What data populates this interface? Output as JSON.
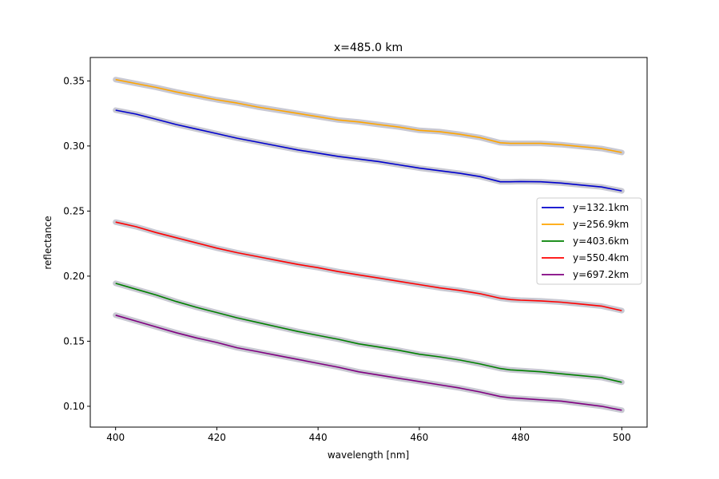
{
  "chart_data": {
    "type": "line",
    "title": "x=485.0 km",
    "xlabel": "wavelength [nm]",
    "ylabel": "reflectance",
    "xlim": [
      395,
      505
    ],
    "ylim": [
      0.084,
      0.368
    ],
    "xticks": [
      400,
      420,
      440,
      460,
      480,
      500
    ],
    "xtick_labels": [
      "400",
      "420",
      "440",
      "460",
      "480",
      "500"
    ],
    "yticks": [
      0.1,
      0.15,
      0.2,
      0.25,
      0.3,
      0.35
    ],
    "ytick_labels": [
      "0.10",
      "0.15",
      "0.20",
      "0.25",
      "0.30",
      "0.35"
    ],
    "grid": false,
    "legend_position": "center-right",
    "uncertainty_band_color": "#c8c8d2",
    "x": [
      400,
      404,
      408,
      412,
      416,
      420,
      424,
      428,
      432,
      436,
      440,
      444,
      448,
      452,
      456,
      460,
      464,
      468,
      472,
      476,
      478,
      480,
      484,
      488,
      492,
      496,
      500
    ],
    "series": [
      {
        "name": "y=132.1km",
        "color": "#0000cc",
        "values": [
          0.3275,
          0.3245,
          0.3205,
          0.3165,
          0.313,
          0.3095,
          0.306,
          0.303,
          0.3,
          0.297,
          0.2945,
          0.292,
          0.29,
          0.288,
          0.2855,
          0.283,
          0.281,
          0.279,
          0.2765,
          0.2725,
          0.2725,
          0.2727,
          0.2725,
          0.2715,
          0.27,
          0.2685,
          0.2655
        ]
      },
      {
        "name": "y=256.9km",
        "color": "#ffa500",
        "values": [
          0.351,
          0.348,
          0.345,
          0.3415,
          0.3385,
          0.3355,
          0.333,
          0.33,
          0.3275,
          0.325,
          0.3225,
          0.32,
          0.3185,
          0.3165,
          0.3145,
          0.312,
          0.311,
          0.309,
          0.3065,
          0.3025,
          0.302,
          0.302,
          0.302,
          0.301,
          0.2995,
          0.298,
          0.295
        ]
      },
      {
        "name": "y=403.6km",
        "color": "#008000",
        "values": [
          0.1945,
          0.19,
          0.1855,
          0.1805,
          0.176,
          0.172,
          0.168,
          0.1645,
          0.161,
          0.1575,
          0.1545,
          0.1515,
          0.148,
          0.1455,
          0.143,
          0.14,
          0.138,
          0.1355,
          0.1325,
          0.129,
          0.128,
          0.1275,
          0.1265,
          0.125,
          0.1235,
          0.122,
          0.1185
        ]
      },
      {
        "name": "y=550.4km",
        "color": "#ff0000",
        "values": [
          0.2415,
          0.238,
          0.2335,
          0.2295,
          0.2255,
          0.2215,
          0.218,
          0.215,
          0.212,
          0.209,
          0.2065,
          0.2035,
          0.201,
          0.1985,
          0.196,
          0.1935,
          0.191,
          0.189,
          0.1865,
          0.183,
          0.182,
          0.1815,
          0.181,
          0.18,
          0.1785,
          0.177,
          0.1735
        ]
      },
      {
        "name": "y=697.2km",
        "color": "#800080",
        "values": [
          0.17,
          0.1655,
          0.161,
          0.1565,
          0.1525,
          0.149,
          0.145,
          0.142,
          0.139,
          0.136,
          0.133,
          0.13,
          0.1265,
          0.124,
          0.1215,
          0.119,
          0.1165,
          0.114,
          0.111,
          0.1075,
          0.1065,
          0.106,
          0.105,
          0.104,
          0.102,
          0.1,
          0.097
        ]
      }
    ]
  }
}
